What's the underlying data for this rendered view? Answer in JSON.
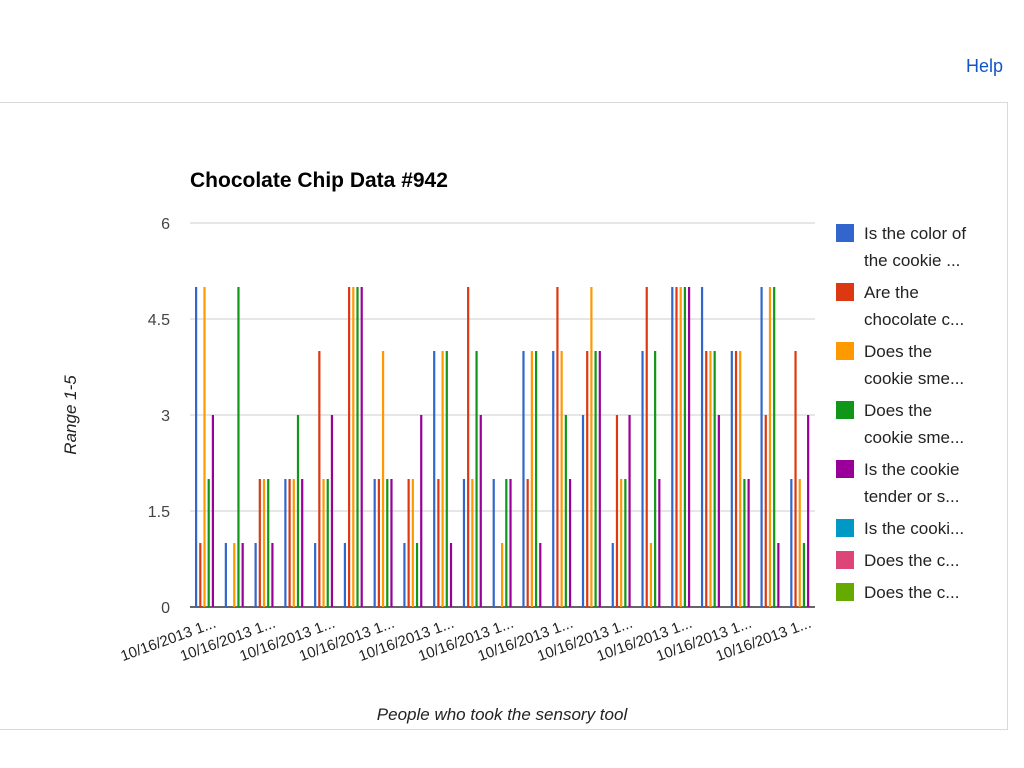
{
  "help_label": "Help",
  "chart_data": {
    "type": "bar",
    "title": "Chocolate Chip Data #942",
    "xlabel": "People who took the sensory tool",
    "ylabel": "Range 1-5",
    "ylim": [
      0,
      6
    ],
    "yticks": [
      "0",
      "1.5",
      "3",
      "4.5",
      "6"
    ],
    "ytick_values": [
      0,
      1.5,
      3,
      4.5,
      6
    ],
    "grid": true,
    "legend_position": "right",
    "x_tick_label": "10/16/2013 1...",
    "group_count": 21,
    "series": [
      {
        "name": "Is the color of the cookie ...",
        "legend_lines": [
          "Is the color of",
          "the cookie ..."
        ],
        "color": "#3366cc",
        "values": [
          5,
          1,
          1,
          2,
          1,
          1,
          2,
          1,
          4,
          2,
          2,
          4,
          4,
          3,
          1,
          4,
          5,
          5,
          4,
          5,
          2
        ]
      },
      {
        "name": "Are the chocolate c...",
        "legend_lines": [
          "Are the",
          "chocolate c..."
        ],
        "color": "#dc3912",
        "values": [
          1,
          0,
          2,
          2,
          4,
          5,
          2,
          2,
          2,
          5,
          0,
          2,
          5,
          4,
          3,
          5,
          5,
          4,
          4,
          3,
          4
        ]
      },
      {
        "name": "Does the cookie sme...",
        "legend_lines": [
          "Does the",
          "cookie sme..."
        ],
        "color": "#ff9900",
        "values": [
          5,
          1,
          2,
          2,
          2,
          5,
          4,
          2,
          4,
          2,
          1,
          4,
          4,
          5,
          2,
          1,
          5,
          4,
          4,
          5,
          2
        ]
      },
      {
        "name": "Does the cookie sme...",
        "legend_lines": [
          "Does the",
          "cookie sme..."
        ],
        "color": "#109618",
        "values": [
          2,
          5,
          2,
          3,
          2,
          5,
          2,
          1,
          4,
          4,
          2,
          4,
          3,
          4,
          2,
          4,
          5,
          4,
          2,
          5,
          1
        ]
      },
      {
        "name": "Is the cookie tender or s...",
        "legend_lines": [
          "Is the cookie",
          "tender or s..."
        ],
        "color": "#990099",
        "values": [
          3,
          1,
          1,
          2,
          3,
          5,
          2,
          3,
          1,
          3,
          2,
          1,
          2,
          4,
          3,
          2,
          5,
          3,
          2,
          1,
          3
        ]
      },
      {
        "name": "Is the cooki...",
        "legend_lines": [
          "Is the cooki..."
        ],
        "color": "#0099c6",
        "values": []
      },
      {
        "name": "Does the c...",
        "legend_lines": [
          "Does the c..."
        ],
        "color": "#dd4477",
        "values": []
      },
      {
        "name": "Does the c...",
        "legend_lines": [
          "Does the c..."
        ],
        "color": "#66aa00",
        "values": []
      }
    ]
  }
}
